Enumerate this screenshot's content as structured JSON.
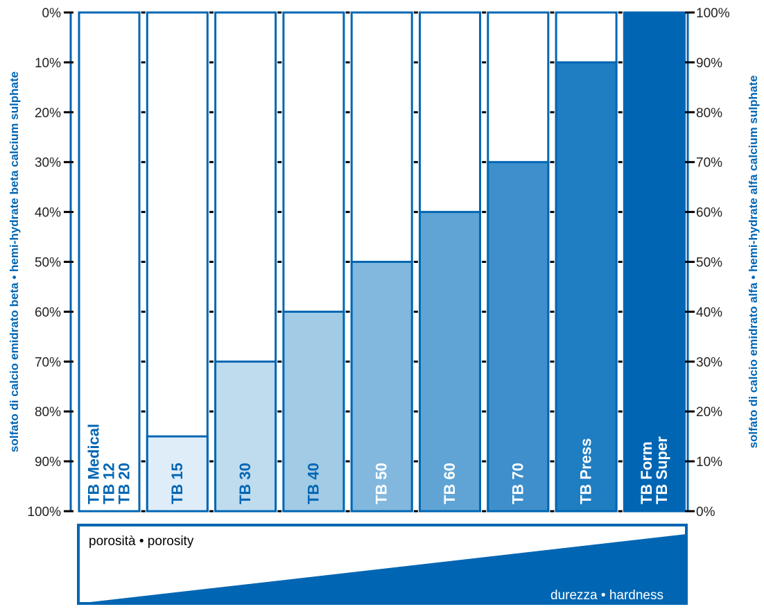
{
  "chart_data": {
    "type": "bar",
    "stacked": true,
    "left_axis": {
      "label": "solfato di calcio emidrato beta • hemi-hydrate beta calcium sulphate",
      "ticks": [
        "0%",
        "10%",
        "20%",
        "30%",
        "40%",
        "50%",
        "60%",
        "70%",
        "80%",
        "90%",
        "100%"
      ]
    },
    "right_axis": {
      "label": "solfato di calcio emidrato alfa • hemi-hydrate alfa calcium sulphate",
      "ticks": [
        "100%",
        "90%",
        "80%",
        "70%",
        "60%",
        "50%",
        "40%",
        "30%",
        "20%",
        "10%",
        "0%"
      ]
    },
    "ylim": [
      0,
      100
    ],
    "categories": [
      [
        "TB Medical",
        "TB 12",
        "TB 20"
      ],
      [
        "TB 15"
      ],
      [
        "TB 30"
      ],
      [
        "TB 40"
      ],
      [
        "TB 50"
      ],
      [
        "TB 60"
      ],
      [
        "TB 70"
      ],
      [
        "TB Press"
      ],
      [
        "TB Form",
        "TB Super"
      ]
    ],
    "alfa_percent": [
      0,
      15,
      30,
      40,
      50,
      60,
      70,
      90,
      100
    ],
    "beta_percent": [
      100,
      85,
      70,
      60,
      50,
      40,
      30,
      10,
      0
    ],
    "bar_colors": [
      "#ffffff",
      "#dfedf8",
      "#bfdcef",
      "#a2cbe6",
      "#82b8de",
      "#5fa4d4",
      "#3e8fcb",
      "#1f7dc1",
      "#0066b3"
    ],
    "label_colors": [
      "#0066b3",
      "#0066b3",
      "#0066b3",
      "#0066b3",
      "#ffffff",
      "#ffffff",
      "#ffffff",
      "#ffffff",
      "#ffffff"
    ],
    "colors": {
      "accent": "#0066b3",
      "axis": "#000000",
      "tick_text": "#222222"
    },
    "porosity_label": "porosità • porosity",
    "hardness_label": "durezza • hardness"
  }
}
